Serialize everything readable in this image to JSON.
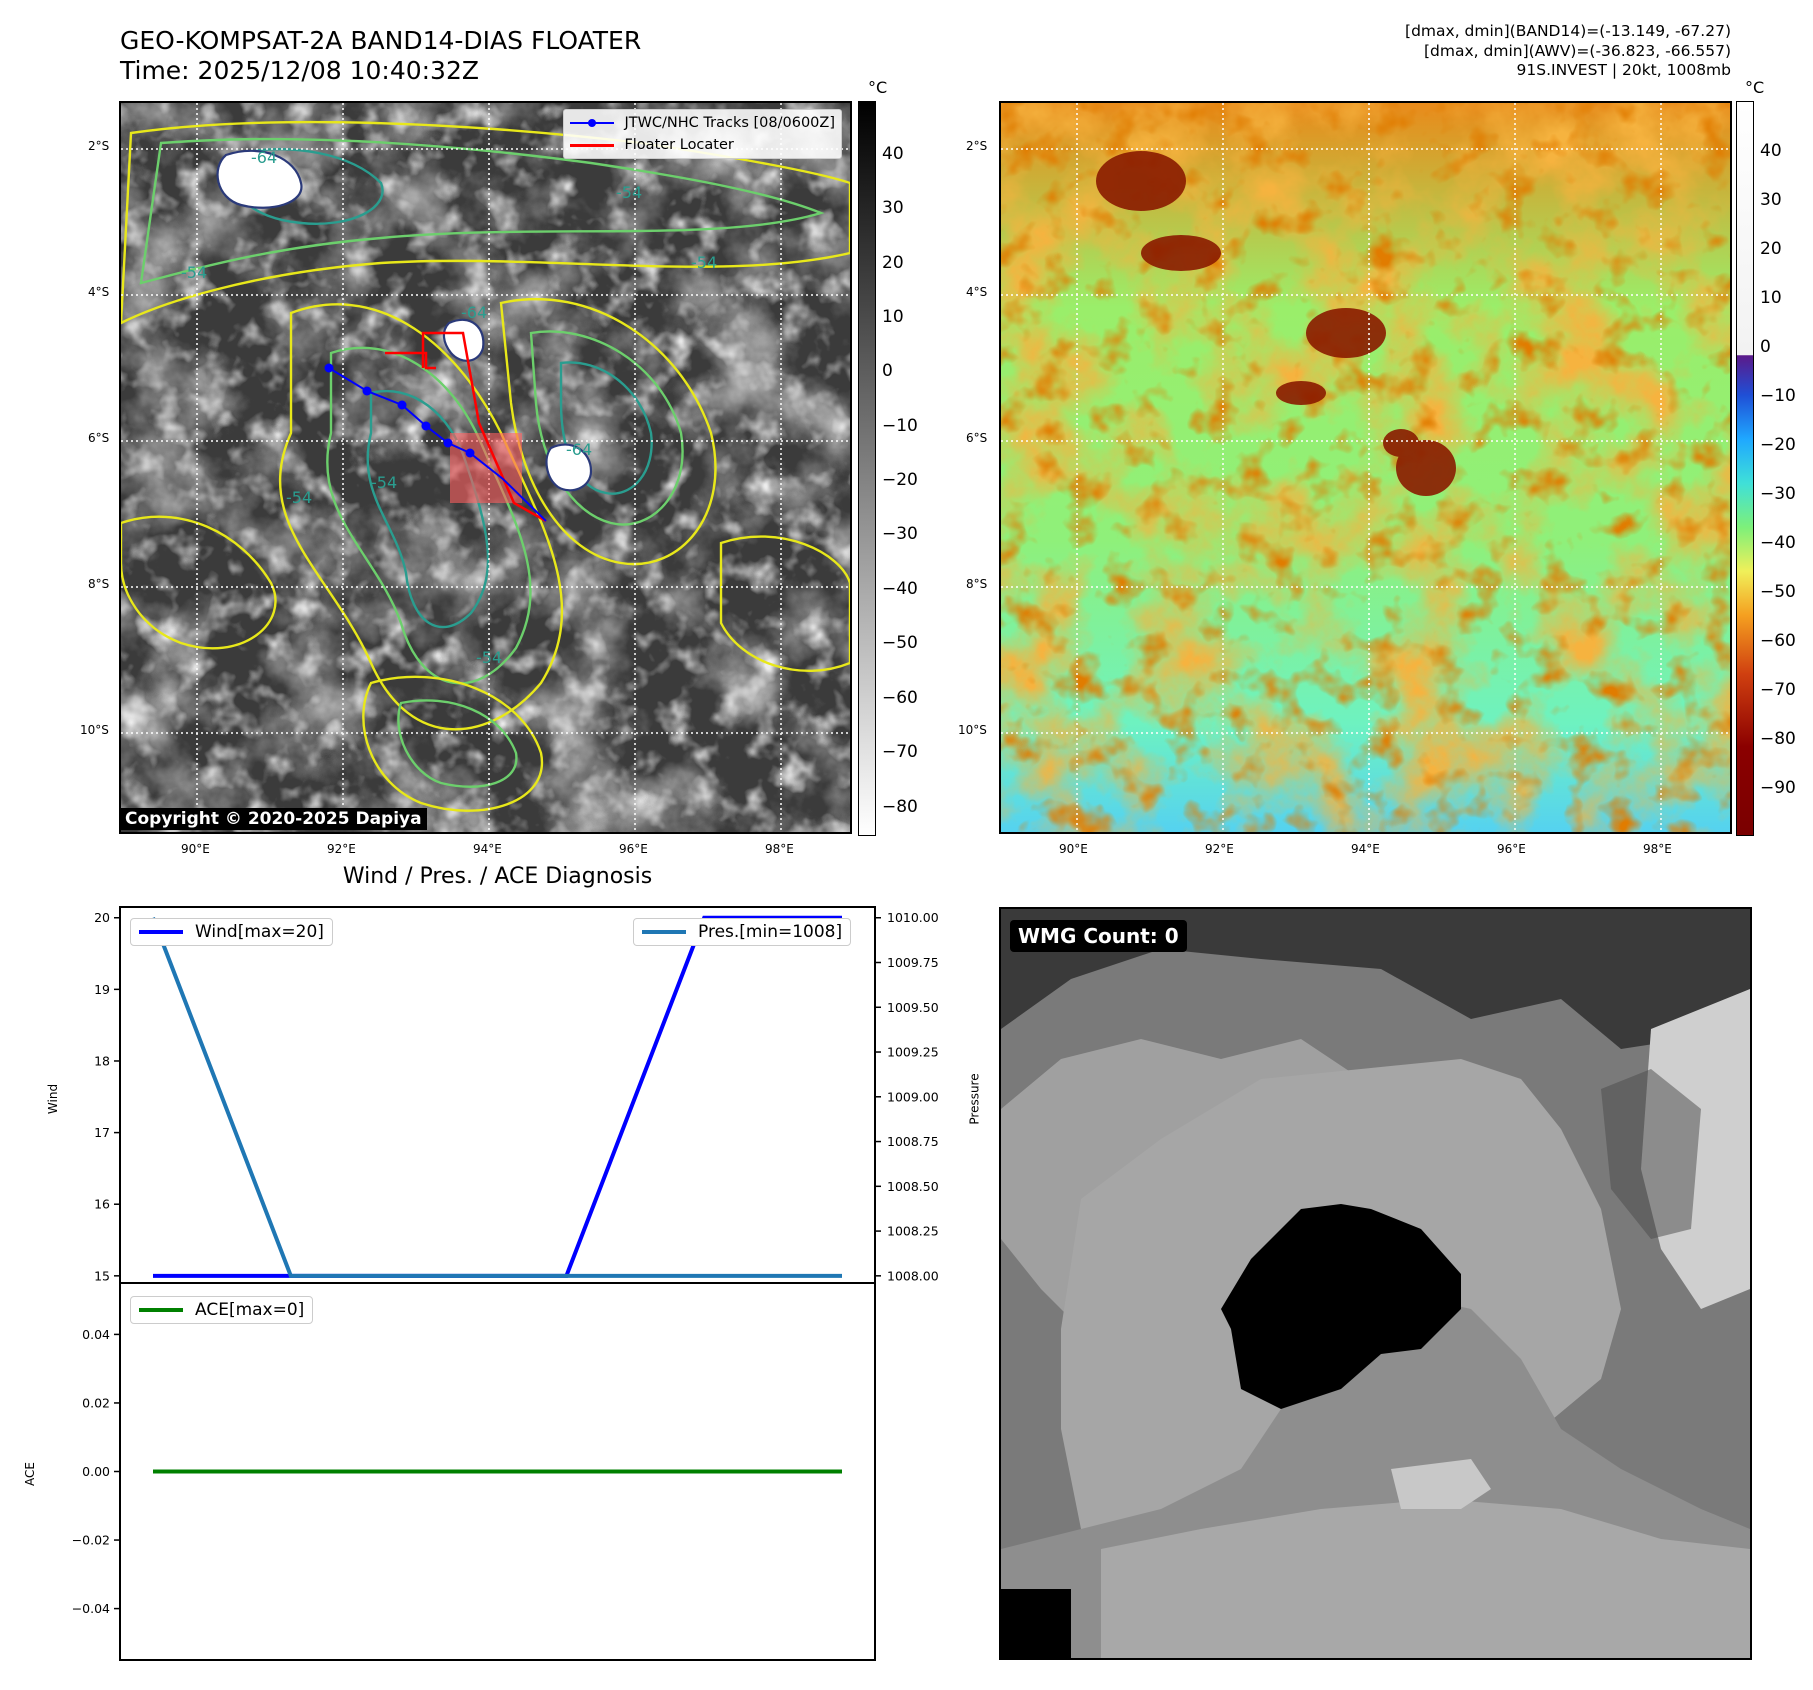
{
  "header": {
    "title_line1": "GEO-KOMPSAT-2A BAND14-DIAS FLOATER",
    "title_line2": "Time: 2025/12/08 10:40:32Z",
    "stats_line1": "[dmax, dmin](BAND14)=(-13.149, -67.27)",
    "stats_line2": "[dmax, dmin](AWV)=(-36.823, -66.557)",
    "stats_line3": "91S.INVEST | 20kt, 1008mb"
  },
  "maps": {
    "lat_ticks": [
      "2°S",
      "4°S",
      "6°S",
      "8°S",
      "10°S"
    ],
    "lon_ticks": [
      "90°E",
      "92°E",
      "94°E",
      "96°E",
      "98°E"
    ],
    "legend_track": "JTWC/NHC Tracks [08/0600Z]",
    "legend_floater": "Floater Locater",
    "copyright": "Copyright © 2020-2025 Dapiya",
    "contour_labels": [
      "-54",
      "-64",
      "-54",
      "-54",
      "-54",
      "-64",
      "-54",
      "-64",
      "-54"
    ],
    "track_color": "#0000ff",
    "floater_color": "#ff0000",
    "colorbar_unit": "°C",
    "cb_left_ticks": [
      "40",
      "30",
      "20",
      "10",
      "0",
      "−10",
      "−20",
      "−30",
      "−40",
      "−50",
      "−60",
      "−70",
      "−80"
    ],
    "cb_right_ticks": [
      "40",
      "30",
      "20",
      "10",
      "0",
      "−10",
      "−20",
      "−30",
      "−40",
      "−50",
      "−60",
      "−70",
      "−80",
      "−90"
    ]
  },
  "diagnosis": {
    "title": "Wind / Pres. / ACE Diagnosis",
    "wind_label": "Wind",
    "pressure_label": "Pressure",
    "ace_label": "ACE",
    "wind_legend": "Wind[max=20]",
    "pres_legend": "Pres.[min=1008]",
    "ace_legend": "ACE[max=0]",
    "wind_ticks": [
      "20",
      "19",
      "18",
      "17",
      "16",
      "15"
    ],
    "pres_ticks": [
      "1010.00",
      "1009.75",
      "1009.50",
      "1009.25",
      "1009.00",
      "1008.75",
      "1008.50",
      "1008.25",
      "1008.00"
    ],
    "ace_ticks": [
      "0.04",
      "0.02",
      "0.00",
      "−0.02",
      "−0.04"
    ],
    "wind_color": "#0000ff",
    "pres_color": "#1f77b4",
    "ace_color": "#008000"
  },
  "wmg": {
    "label": "WMG Count: 0"
  },
  "chart_data": [
    {
      "type": "line",
      "title": "Wind / Pres. / ACE Diagnosis",
      "ylabel": "Wind",
      "x": [
        0,
        1,
        2,
        3,
        4,
        5
      ],
      "series": [
        {
          "name": "Wind[max=20]",
          "values": [
            15,
            15,
            15,
            15,
            20,
            20
          ],
          "axis": "left"
        },
        {
          "name": "Pres.[min=1008]",
          "values": [
            1010,
            1008,
            1008,
            1008,
            1008,
            1008
          ],
          "axis": "right"
        }
      ],
      "ylim": [
        14.9,
        20.15
      ],
      "y2label": "Pressure",
      "y2lim": [
        1007.96,
        1010.06
      ]
    },
    {
      "type": "line",
      "ylabel": "ACE",
      "x": [
        0,
        1,
        2,
        3,
        4,
        5
      ],
      "series": [
        {
          "name": "ACE[max=0]",
          "values": [
            0,
            0,
            0,
            0,
            0,
            0
          ]
        }
      ],
      "ylim": [
        -0.055,
        0.055
      ]
    }
  ]
}
